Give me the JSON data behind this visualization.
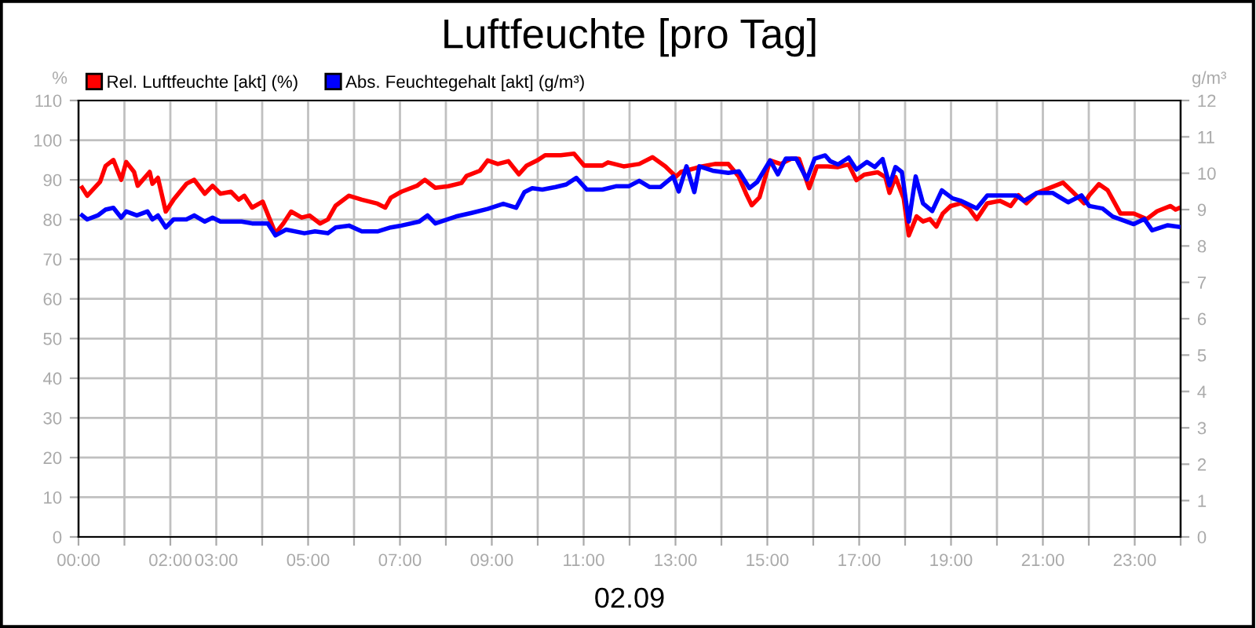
{
  "chart_data": {
    "type": "line",
    "title": "Luftfeuchte [pro Tag]",
    "xlabel": "02.09",
    "ylabel": "%",
    "y2label": "g/m³",
    "xlim": [
      0,
      24
    ],
    "xticks": [
      {
        "value": 0,
        "label": "00:00"
      },
      {
        "value": 1,
        "label": null
      },
      {
        "value": 2,
        "label": "02:00"
      },
      {
        "value": 3,
        "label": "03:00"
      },
      {
        "value": 4,
        "label": null
      },
      {
        "value": 5,
        "label": "05:00"
      },
      {
        "value": 6,
        "label": null
      },
      {
        "value": 7,
        "label": "07:00"
      },
      {
        "value": 8,
        "label": null
      },
      {
        "value": 9,
        "label": "09:00"
      },
      {
        "value": 10,
        "label": null
      },
      {
        "value": 11,
        "label": "11:00"
      },
      {
        "value": 12,
        "label": null
      },
      {
        "value": 13,
        "label": "13:00"
      },
      {
        "value": 14,
        "label": null
      },
      {
        "value": 15,
        "label": "15:00"
      },
      {
        "value": 16,
        "label": null
      },
      {
        "value": 17,
        "label": "17:00"
      },
      {
        "value": 18,
        "label": null
      },
      {
        "value": 19,
        "label": "19:00"
      },
      {
        "value": 20,
        "label": null
      },
      {
        "value": 21,
        "label": "21:00"
      },
      {
        "value": 22,
        "label": null
      },
      {
        "value": 23,
        "label": "23:00"
      },
      {
        "value": 24,
        "label": null
      }
    ],
    "ylim": [
      0,
      110
    ],
    "yticks": [
      0,
      10,
      20,
      30,
      40,
      50,
      60,
      70,
      80,
      90,
      100,
      110
    ],
    "y2lim": [
      0,
      12
    ],
    "y2ticks": [
      0,
      1,
      2,
      3,
      4,
      5,
      6,
      7,
      8,
      9,
      10,
      11,
      12
    ],
    "grid": true,
    "legend": "top left",
    "marker": "none",
    "line_style": "solid",
    "series": [
      {
        "name": "Rel. Luftfeuchte [akt] (%)",
        "color": "#ff0000",
        "x": [
          0.08,
          0.19,
          0.47,
          0.59,
          0.76,
          0.93,
          1.04,
          1.21,
          1.29,
          1.55,
          1.61,
          1.73,
          1.9,
          2.07,
          2.35,
          2.52,
          2.75,
          2.92,
          3.09,
          3.32,
          3.49,
          3.61,
          3.78,
          4.01,
          4.29,
          4.46,
          4.63,
          4.86,
          5.03,
          5.26,
          5.43,
          5.6,
          5.89,
          6.17,
          6.51,
          6.68,
          6.8,
          7.03,
          7.37,
          7.54,
          7.77,
          8.05,
          8.34,
          8.45,
          8.74,
          8.91,
          9.13,
          9.36,
          9.59,
          9.76,
          9.99,
          10.16,
          10.5,
          10.79,
          11.01,
          11.41,
          11.53,
          11.87,
          12.21,
          12.5,
          12.78,
          13.01,
          13.12,
          13.35,
          13.58,
          13.86,
          14.15,
          14.38,
          14.55,
          14.66,
          14.83,
          15.06,
          15.29,
          15.52,
          15.69,
          15.91,
          16.08,
          16.31,
          16.54,
          16.77,
          16.94,
          17.11,
          17.4,
          17.57,
          17.66,
          17.79,
          17.97,
          18.08,
          18.25,
          18.39,
          18.54,
          18.68,
          18.82,
          18.99,
          19.22,
          19.39,
          19.56,
          19.79,
          20.07,
          20.3,
          20.47,
          20.64,
          20.87,
          21.16,
          21.44,
          21.61,
          21.9,
          22.01,
          22.22,
          22.41,
          22.69,
          22.98,
          23.26,
          23.49,
          23.78,
          23.89,
          23.95
        ],
        "values": [
          88,
          86,
          89.5,
          93.5,
          95,
          90,
          94.5,
          92,
          88.5,
          92,
          89,
          90.5,
          82,
          85,
          89,
          90,
          86.5,
          88.5,
          86.5,
          87,
          85,
          86,
          83,
          84.5,
          76.5,
          79,
          82,
          80.5,
          81,
          79,
          80,
          83.5,
          86,
          85,
          84,
          83,
          85.5,
          87,
          88.5,
          90,
          88,
          88.4,
          89.2,
          91,
          92.3,
          94.9,
          94,
          94.7,
          91.4,
          93.6,
          94.9,
          96.2,
          96.2,
          96.6,
          93.6,
          93.6,
          94.4,
          93.4,
          94,
          95.7,
          93.4,
          90.8,
          92,
          92.7,
          93.4,
          94,
          94,
          90.8,
          86.2,
          83.6,
          85.6,
          94.9,
          94,
          95.3,
          95.3,
          87.9,
          93.4,
          93.4,
          93.2,
          93.9,
          89.9,
          91.3,
          91.9,
          90.7,
          86.7,
          90.7,
          85.3,
          76,
          80.8,
          79.5,
          80.1,
          78.2,
          81.5,
          83.4,
          84.1,
          82.8,
          80.1,
          84.1,
          84.7,
          83.4,
          86.1,
          84.1,
          86.7,
          88,
          89.3,
          87.4,
          84.1,
          86.1,
          88.9,
          87.4,
          81.5,
          81.5,
          80.1,
          82.1,
          83.4,
          82.5,
          82.8
        ]
      },
      {
        "name": "Abs. Feuchtegehalt [akt] (g/m³)",
        "color": "#0000ff",
        "axis": "y2",
        "x": [
          0.08,
          0.19,
          0.42,
          0.59,
          0.76,
          0.93,
          1.04,
          1.27,
          1.5,
          1.61,
          1.73,
          1.9,
          2.07,
          2.35,
          2.52,
          2.75,
          2.92,
          3.09,
          3.55,
          3.78,
          4.12,
          4.29,
          4.52,
          4.92,
          5.15,
          5.43,
          5.6,
          5.89,
          6.17,
          6.51,
          6.8,
          7.03,
          7.42,
          7.6,
          7.77,
          8.22,
          8.56,
          8.91,
          9.25,
          9.53,
          9.71,
          9.88,
          10.1,
          10.39,
          10.62,
          10.84,
          11.07,
          11.41,
          11.7,
          11.98,
          12.21,
          12.44,
          12.67,
          12.95,
          13.07,
          13.24,
          13.41,
          13.52,
          13.81,
          14.15,
          14.38,
          14.61,
          14.78,
          15.06,
          15.23,
          15.4,
          15.63,
          15.86,
          16.03,
          16.26,
          16.37,
          16.54,
          16.77,
          16.94,
          17.17,
          17.34,
          17.51,
          17.66,
          17.79,
          17.93,
          18.08,
          18.23,
          18.39,
          18.59,
          18.8,
          19.03,
          19.22,
          19.56,
          19.79,
          20.07,
          20.42,
          20.59,
          20.87,
          21.21,
          21.55,
          21.84,
          22.01,
          22.3,
          22.52,
          22.98,
          23.21,
          23.38,
          23.72,
          23.95
        ],
        "values": [
          8.84,
          8.73,
          8.84,
          9.0,
          9.05,
          8.78,
          8.95,
          8.84,
          8.95,
          8.73,
          8.84,
          8.51,
          8.73,
          8.73,
          8.84,
          8.67,
          8.78,
          8.67,
          8.67,
          8.62,
          8.62,
          8.29,
          8.45,
          8.35,
          8.4,
          8.35,
          8.51,
          8.56,
          8.4,
          8.4,
          8.51,
          8.56,
          8.67,
          8.84,
          8.62,
          8.81,
          8.91,
          9.02,
          9.16,
          9.05,
          9.48,
          9.59,
          9.55,
          9.62,
          9.69,
          9.87,
          9.55,
          9.55,
          9.64,
          9.64,
          9.79,
          9.62,
          9.62,
          9.91,
          9.5,
          10.19,
          9.48,
          10.19,
          10.07,
          10.01,
          10.05,
          9.59,
          9.76,
          10.35,
          9.97,
          10.4,
          10.4,
          9.83,
          10.4,
          10.49,
          10.33,
          10.24,
          10.43,
          10.1,
          10.31,
          10.17,
          10.39,
          9.67,
          10.17,
          10.03,
          8.67,
          9.91,
          9.17,
          8.96,
          9.53,
          9.31,
          9.24,
          9.03,
          9.39,
          9.39,
          9.39,
          9.24,
          9.46,
          9.46,
          9.2,
          9.39,
          9.1,
          9.03,
          8.81,
          8.6,
          8.74,
          8.43,
          8.57,
          8.53
        ]
      }
    ]
  }
}
